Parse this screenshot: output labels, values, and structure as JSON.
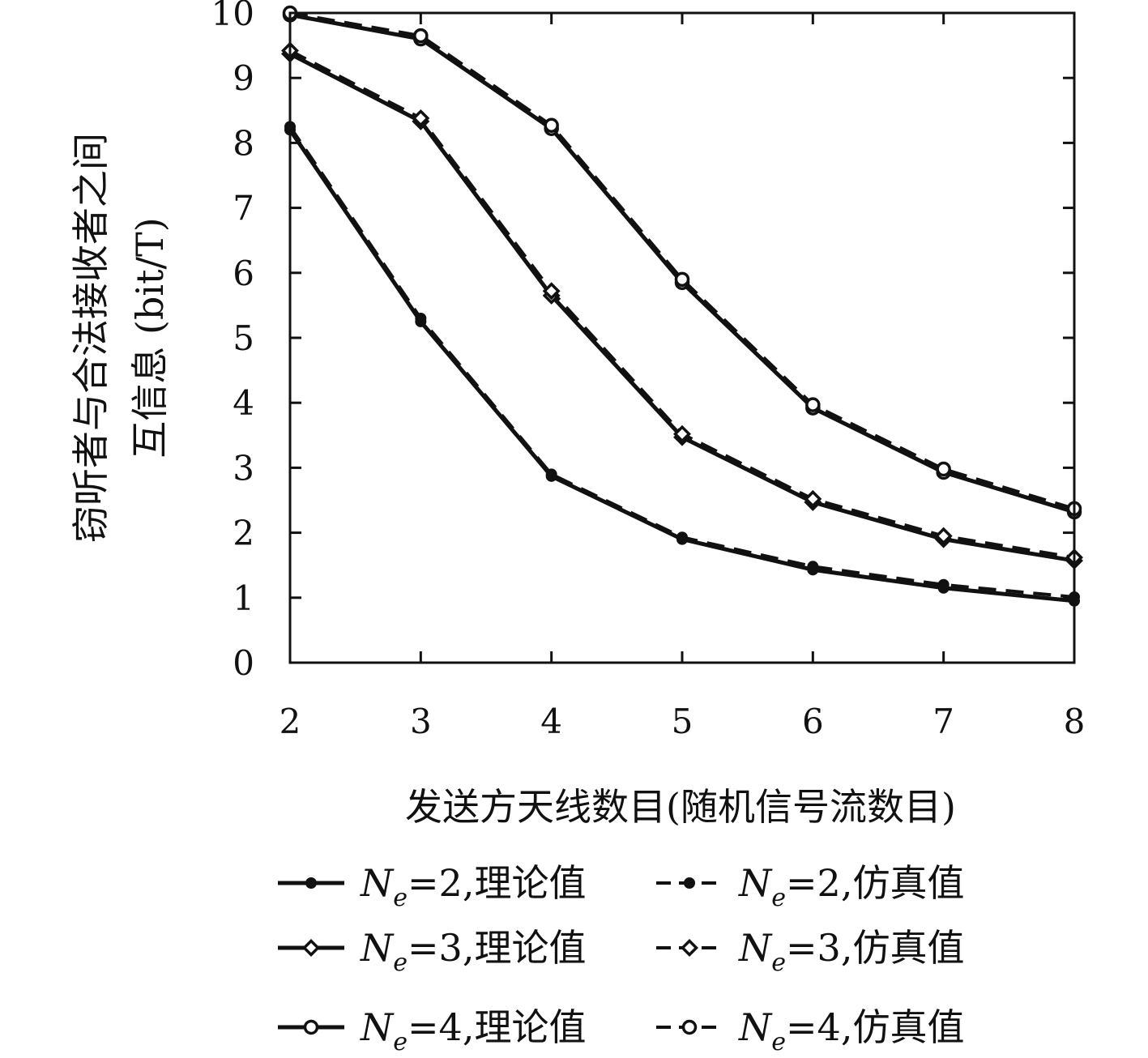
{
  "chart_data": {
    "type": "line",
    "title": "",
    "xlabel": "发送方天线数目(随机信号流数目)",
    "ylabel_lines": [
      "窃听者与合法接收者之间",
      "互信息 (bit/T)"
    ],
    "x": [
      2,
      3,
      4,
      5,
      6,
      7,
      8
    ],
    "xlim": [
      2,
      8
    ],
    "ylim": [
      0,
      10
    ],
    "xticks": [
      "2",
      "3",
      "4",
      "5",
      "6",
      "7",
      "8"
    ],
    "yticks": [
      "0",
      "1",
      "2",
      "3",
      "4",
      "5",
      "6",
      "7",
      "8",
      "9",
      "10"
    ],
    "grid": false,
    "legend_position": "bottom",
    "series": [
      {
        "name": "Ne=2,理论值",
        "label_var": "N",
        "label_sub": "e",
        "label_rest": "=2,理论值",
        "line": "solid",
        "marker": "dot",
        "values": [
          8.2,
          5.25,
          2.87,
          1.9,
          1.43,
          1.15,
          0.95
        ]
      },
      {
        "name": "Ne=2,仿真值",
        "label_var": "N",
        "label_sub": "e",
        "label_rest": "=2,仿真值",
        "line": "dashed",
        "marker": "dot",
        "values": [
          8.25,
          5.3,
          2.9,
          1.93,
          1.48,
          1.2,
          1.01
        ]
      },
      {
        "name": "Ne=3,理论值",
        "label_var": "N",
        "label_sub": "e",
        "label_rest": "=3,理论值",
        "line": "solid",
        "marker": "diamond",
        "values": [
          9.37,
          8.33,
          5.65,
          3.47,
          2.47,
          1.9,
          1.57
        ]
      },
      {
        "name": "Ne=3,仿真值",
        "label_var": "N",
        "label_sub": "e",
        "label_rest": "=3,仿真值",
        "line": "dashed",
        "marker": "diamond",
        "values": [
          9.42,
          8.38,
          5.72,
          3.52,
          2.52,
          1.95,
          1.62
        ]
      },
      {
        "name": "Ne=4,理论值",
        "label_var": "N",
        "label_sub": "e",
        "label_rest": "=4,理论值",
        "line": "solid",
        "marker": "circle",
        "values": [
          9.97,
          9.6,
          8.22,
          5.85,
          3.92,
          2.93,
          2.32
        ]
      },
      {
        "name": "Ne=4,仿真值",
        "label_var": "N",
        "label_sub": "e",
        "label_rest": "=4,仿真值",
        "line": "dashed",
        "marker": "circle",
        "values": [
          10.0,
          9.65,
          8.27,
          5.9,
          3.97,
          2.98,
          2.37
        ]
      }
    ],
    "colors": {
      "line": "#111111",
      "background": "#ffffff"
    }
  }
}
